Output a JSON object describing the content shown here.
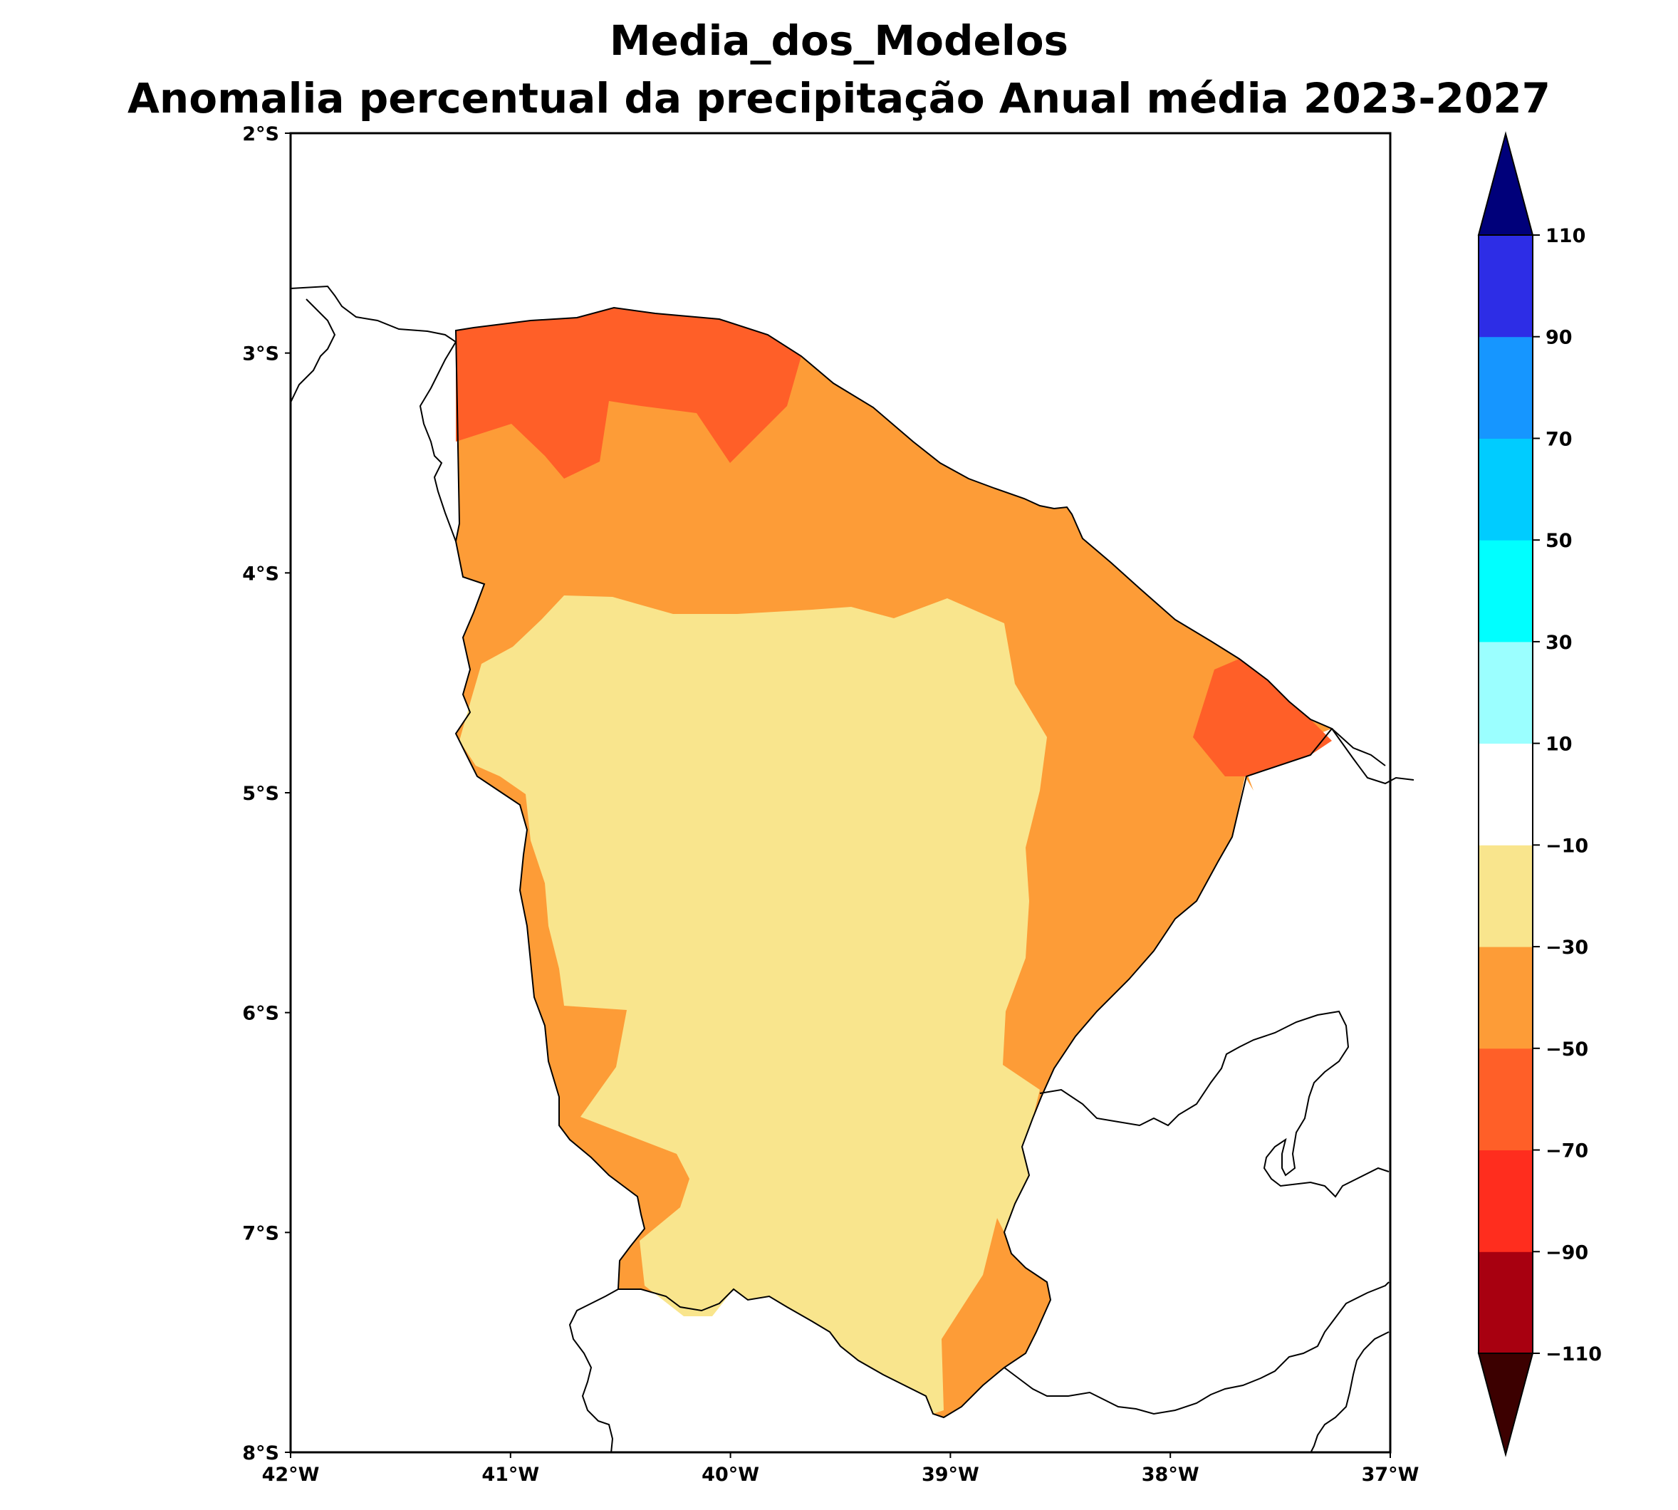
{
  "title": {
    "line1": "Media_dos_Modelos",
    "line2": "Anomalia percentual da precipitação Anual média 2023-2027"
  },
  "map": {
    "lon_range": [
      -42,
      -37
    ],
    "lat_range": [
      -8,
      -2
    ],
    "lon_ticks": [
      "42°W",
      "41°W",
      "40°W",
      "39°W",
      "38°W",
      "37°W"
    ],
    "lat_ticks": [
      "2°S",
      "3°S",
      "4°S",
      "5°S",
      "6°S",
      "7°S",
      "8°S"
    ],
    "region_classes": [
      {
        "range": "-70 to -50",
        "color": "#ff5f28"
      },
      {
        "range": "-50 to -30",
        "color": "#fd9c37"
      },
      {
        "range": "-30 to -10",
        "color": "#f9e58d"
      }
    ]
  },
  "colorbar": {
    "levels": [
      "−110",
      "−90",
      "−70",
      "−50",
      "−30",
      "−10",
      "10",
      "30",
      "50",
      "70",
      "90",
      "110"
    ],
    "colors": [
      "#a80010",
      "#ff2d1e",
      "#ff5f28",
      "#fd9c37",
      "#f9e58d",
      "#ffffff",
      "#9bffff",
      "#00ffff",
      "#00ccff",
      "#1696ff",
      "#2d2de6"
    ],
    "under_color": "#3c0000",
    "over_color": "#00007a",
    "extend": "both"
  }
}
